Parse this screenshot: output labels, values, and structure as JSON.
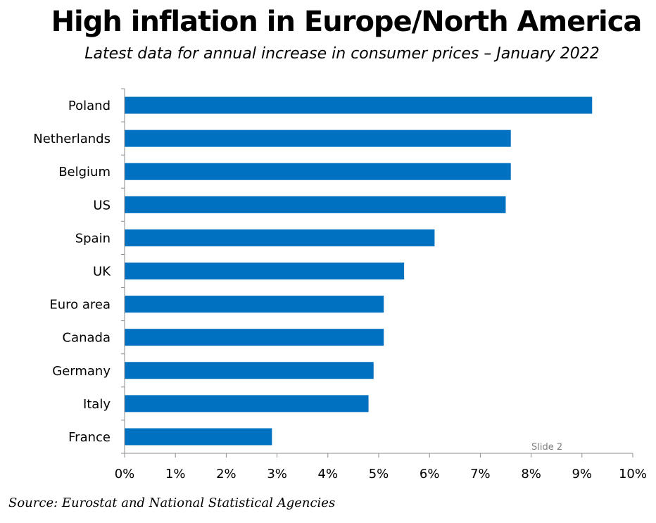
{
  "title": "High inflation in Europe/North America",
  "subtitle": "Latest data for annual increase in consumer prices – January 2022",
  "source": "Source: Eurostat and National Statistical Agencies",
  "slide_label": "Slide 2",
  "colors": {
    "bar": "#0070c0",
    "axis": "#8c8c8c",
    "slide_label": "#7f7f7f"
  },
  "chart_data": {
    "type": "bar",
    "orientation": "horizontal",
    "title": "High inflation in Europe/North America",
    "subtitle": "Latest data for annual increase in consumer prices – January 2022",
    "categories": [
      "Poland",
      "Netherlands",
      "Belgium",
      "US",
      "Spain",
      "UK",
      "Euro area",
      "Canada",
      "Germany",
      "Italy",
      "France"
    ],
    "values": [
      9.2,
      7.6,
      7.6,
      7.5,
      6.1,
      5.5,
      5.1,
      5.1,
      4.9,
      4.8,
      2.9
    ],
    "xlim": [
      0,
      10
    ],
    "xticks": [
      0,
      1,
      2,
      3,
      4,
      5,
      6,
      7,
      8,
      9,
      10
    ],
    "tick_labels": [
      "0%",
      "1%",
      "2%",
      "3%",
      "4%",
      "5%",
      "6%",
      "7%",
      "8%",
      "9%",
      "10%"
    ],
    "xlabel": "",
    "ylabel": "",
    "grid": false,
    "legend": "none"
  }
}
